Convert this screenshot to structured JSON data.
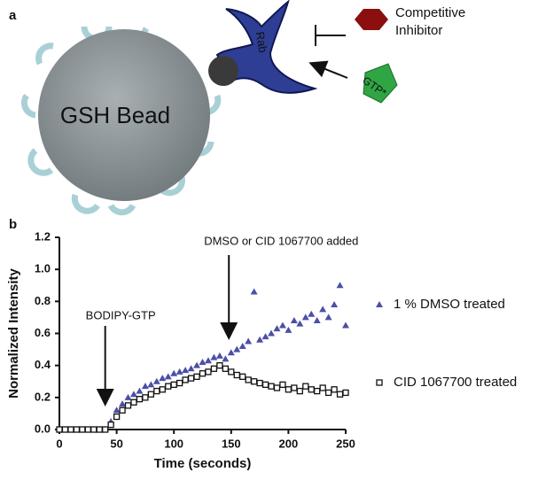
{
  "panel_labels": [
    "a",
    "b"
  ],
  "diagram": {
    "bead_label": "GSH Bead",
    "protein_label": "Rab",
    "inhibitor_label": [
      "Competitive",
      "Inhibitor"
    ],
    "gtp_label": "GTP*"
  },
  "chart_data": {
    "type": "scatter",
    "xlabel": "Time (seconds)",
    "ylabel": "Normalized Intensity",
    "x": [
      0,
      5,
      10,
      15,
      20,
      25,
      30,
      35,
      40,
      45,
      50,
      55,
      60,
      65,
      70,
      75,
      80,
      85,
      90,
      95,
      100,
      105,
      110,
      115,
      120,
      125,
      130,
      135,
      140,
      145,
      150,
      155,
      160,
      165,
      170,
      175,
      180,
      185,
      190,
      195,
      200,
      205,
      210,
      215,
      220,
      225,
      230,
      235,
      240,
      245,
      250
    ],
    "series": [
      {
        "name": "1 % DMSO treated",
        "color": "#4b4fa6",
        "marker": "triangle",
        "values": [
          0,
          0,
          0,
          0,
          0,
          0,
          0,
          0,
          0,
          0.05,
          0.12,
          0.16,
          0.2,
          0.22,
          0.24,
          0.27,
          0.28,
          0.3,
          0.32,
          0.33,
          0.35,
          0.36,
          0.37,
          0.38,
          0.4,
          0.42,
          0.43,
          0.45,
          0.46,
          0.44,
          0.48,
          0.5,
          0.52,
          0.55,
          0.86,
          0.56,
          0.58,
          0.6,
          0.63,
          0.65,
          0.62,
          0.68,
          0.66,
          0.7,
          0.72,
          0.68,
          0.75,
          0.7,
          0.78,
          0.9,
          0.65
        ]
      },
      {
        "name": "CID 1067700 treated",
        "color": "#111111",
        "marker": "square",
        "values": [
          0,
          0,
          0,
          0,
          0,
          0,
          0,
          0,
          0,
          0.03,
          0.08,
          0.12,
          0.15,
          0.17,
          0.19,
          0.2,
          0.22,
          0.24,
          0.25,
          0.27,
          0.28,
          0.29,
          0.31,
          0.32,
          0.33,
          0.35,
          0.36,
          0.38,
          0.4,
          0.38,
          0.36,
          0.34,
          0.33,
          0.31,
          0.3,
          0.29,
          0.28,
          0.27,
          0.26,
          0.28,
          0.25,
          0.26,
          0.24,
          0.27,
          0.25,
          0.24,
          0.26,
          0.23,
          0.25,
          0.22,
          0.23
        ]
      }
    ],
    "xlim": [
      0,
      250
    ],
    "xticks": [
      0,
      50,
      100,
      150,
      200,
      250
    ],
    "ylim": [
      0,
      1.2
    ],
    "yticks": [
      {
        "value": 0,
        "label": "0.0"
      },
      0.2,
      0.4,
      0.6,
      0.8,
      {
        "value": 1,
        "label": "1.0"
      },
      1.2
    ],
    "legend": "right",
    "annotations": [
      {
        "text": "BODIPY-GTP",
        "x": 40
      },
      {
        "text": "DMSO or CID 1067700 added",
        "x": 148
      }
    ]
  }
}
